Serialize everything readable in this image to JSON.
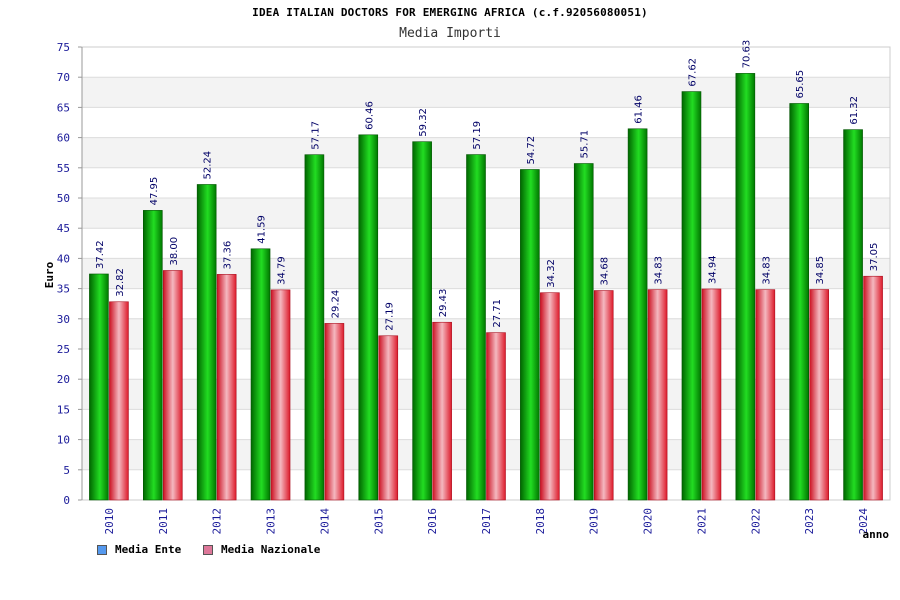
{
  "chart_data": {
    "type": "bar",
    "title": "IDEA ITALIAN DOCTORS FOR EMERGING AFRICA (c.f.92056080051)",
    "subtitle": "Media Importi",
    "ylabel": "Euro",
    "xlabel": "anno",
    "ylim": [
      0,
      75
    ],
    "ytick_step": 5,
    "grid": true,
    "legend_position": "bottom-left",
    "categories": [
      "2010",
      "2011",
      "2012",
      "2013",
      "2014",
      "2015",
      "2016",
      "2017",
      "2018",
      "2019",
      "2020",
      "2021",
      "2022",
      "2023",
      "2024"
    ],
    "series": [
      {
        "name": "Media Ente",
        "color": "#00aa00",
        "legend_color": "#5599ee",
        "values": [
          37.42,
          47.95,
          52.24,
          41.59,
          57.17,
          60.46,
          59.32,
          57.19,
          54.72,
          55.71,
          61.46,
          67.62,
          70.63,
          65.65,
          61.32
        ],
        "labels": [
          "37.42",
          "47.95",
          "52.24",
          "41.59",
          "57.17",
          "60.46",
          "59.32",
          "57.19",
          "54.72",
          "55.71",
          "61.46",
          "67.62",
          "70.63",
          "65.65",
          "61.32"
        ]
      },
      {
        "name": "Media Nazionale",
        "color": "#e0303a",
        "legend_color": "#dd7799",
        "values": [
          32.82,
          38.0,
          37.36,
          34.79,
          29.24,
          27.19,
          29.43,
          27.71,
          34.32,
          34.68,
          34.83,
          34.94,
          34.83,
          34.85,
          37.05
        ],
        "labels": [
          "32.82",
          "38.00",
          "37.36",
          "34.79",
          "29.24",
          "27.19",
          "29.43",
          "27.71",
          "34.32",
          "34.68",
          "34.83",
          "34.94",
          "34.83",
          "34.85",
          "37.05"
        ]
      }
    ]
  }
}
